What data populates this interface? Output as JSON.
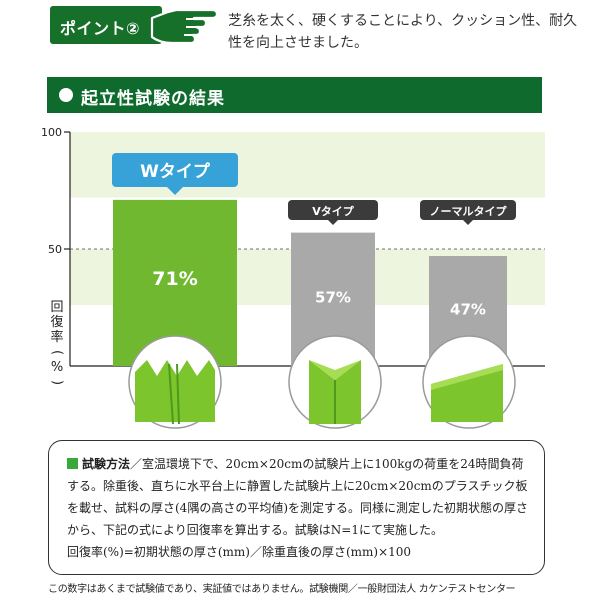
{
  "header": {
    "badge_label": "ポイント②",
    "intro_line1": "芝糸を太く、硬くすることにより、クッション性、耐久",
    "intro_line2": "性を向上させました。"
  },
  "section": {
    "title": "起立性試験の結果"
  },
  "chart_data": {
    "type": "bar",
    "categories": [
      "Wタイプ",
      "Vタイプ",
      "ノーマルタイプ"
    ],
    "values": [
      71,
      57,
      47
    ],
    "value_labels": [
      "71%",
      "57%",
      "47%"
    ],
    "ylabel_chars": [
      "回",
      "復",
      "率",
      "(",
      "%",
      ")"
    ],
    "ylim": [
      0,
      100
    ],
    "yticks": [
      100,
      50
    ],
    "colors": {
      "highlight_bar": "#6fb82f",
      "other_bar": "#a9a9a9",
      "label_highlight_bg": "#36a2d8",
      "label_other_bg": "#3b3b3b",
      "band": "#eef5df"
    }
  },
  "method": {
    "heading": "試験方法",
    "body": "／室温環境下で、20cm×20cmの試験片上に100kgの荷重を24時間負荷する。除重後、直ちに水平台上に静置した試験片上に20cm×20cmのプラスチック板を載せ、試料の厚さ(4隅の高さの平均値)を測定する。同様に測定した初期状態の厚さから、下記の式により回復率を算出する。試験はN=1にて実施した。",
    "formula": "回復率(%)=初期状態の厚さ(mm)／除重直後の厚さ(mm)×100"
  },
  "footnote": "この数字はあくまで試験値であり、実証値ではありません。試験機関／一般財団法人 カケンテストセンター"
}
